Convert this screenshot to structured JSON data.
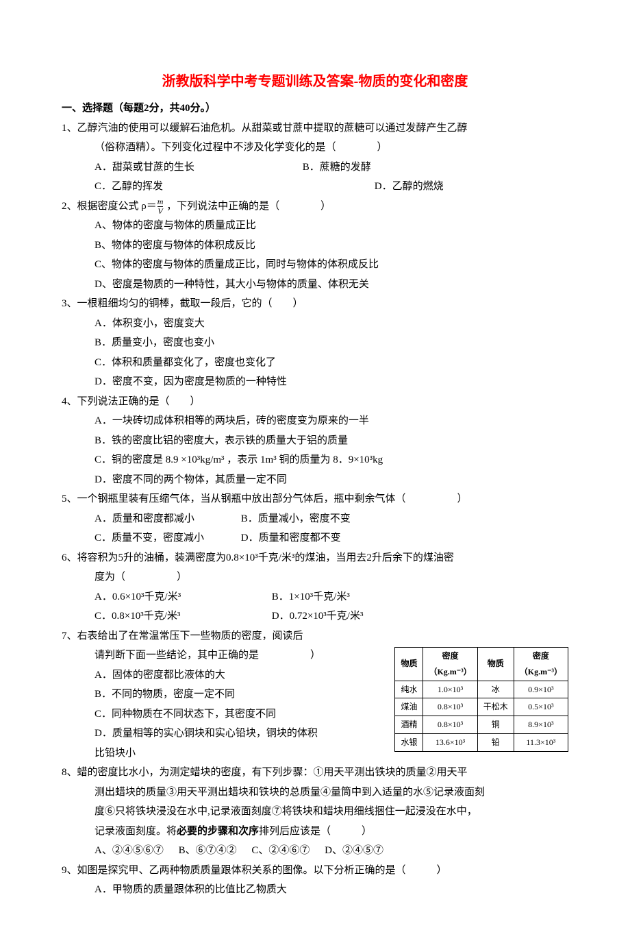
{
  "title": "浙教版科学中考专题训练及答案-物质的变化和密度",
  "section_header": "一、选择题（每题2分，共40分。）",
  "density_formula": {
    "num": "m",
    "den": "V"
  },
  "q1": {
    "stem1": "1、乙醇汽油的使用可以缓解石油危机。从甜菜或甘蔗中提取的蔗糖可以通过发酵产生乙醇",
    "stem2": "（俗称酒精）。下列变化过程中不涉及化学变化的是（　　　　）",
    "A": "A．甜菜或甘蔗的生长",
    "B": "B．蔗糖的发酵",
    "C": "C．乙醇的挥发",
    "D": "D．乙醇的燃烧"
  },
  "q2": {
    "stem_pre": "2、根据密度公式 ρ＝",
    "stem_post": " ，下列说法中正确的是（　　　　）",
    "A": "A、物体的密度与物体的质量成正比",
    "B": "B、物体的密度与物体的体积成反比",
    "C": "C、物体的密度与物体的质量成正比，同时与物体的体积成反比",
    "D": "D、密度是物质的一种特性，其大小与物体的质量、体积无关"
  },
  "q3": {
    "stem": "3、一根粗细均匀的铜棒，截取一段后，它的（　　）",
    "A": "A．体积变小，密度变大",
    "B": "B．质量变小，密度也变小",
    "C": "C．体积和质量都变化了，密度也变化了",
    "D": "D．密度不变，因为密度是物质的一种特性"
  },
  "q4": {
    "stem": "4、下列说法正确的是（　　）",
    "A": "A．一块砖切成体积相等的两块后，砖的密度变为原来的一半",
    "B": "B．铁的密度比铝的密度大，表示铁的质量大于铝的质量",
    "C": "C．铜的密度是 8.9 ×10³kg/m³ ，表示 1m³ 铜的质量为 8．9×10³kg",
    "D": "D．密度不同的两个物体，其质量一定不同"
  },
  "q5": {
    "stem": "5、一个钢瓶里装有压缩气体，当从钢瓶中放出部分气体后，瓶中剩余气体（　　　　　）",
    "A": "A．质量和密度都减小",
    "B": "B．质量减小，密度不变",
    "C": "C．质量不变，密度减小",
    "D": "D．质量和密度都不变"
  },
  "q6": {
    "stem1": "6、将容积为5升的油桶，装满密度为0.8×10³千克/米³的煤油，当用去2升后余下的煤油密",
    "stem2": "度为（　　　　　）",
    "A": "A．0.6×10³千克/米³",
    "B": "B．1×10³千克/米³",
    "C": "C．0.8×10³千克/米³",
    "D": "D．0.72×10³千克/米³"
  },
  "q7": {
    "stem1": "7、右表给出了在常温常压下一些物质的密度，阅读后",
    "stem2": "请判断下面一些结论，其中正确的是　　　　　）",
    "A": "A．固体的密度都比液体的大",
    "B": "B．不同的物质，密度一定不同",
    "C": "C．同种物质在不同状态下，其密度不同",
    "D1": "D．质量相等的实心铜块和实心铅块，铜块的体积",
    "D2": "比铅块小"
  },
  "q8": {
    "stem1": "8、蜡的密度比水小，为测定蜡块的密度，有下列步骤：①用天平测出铁块的质量②用天平",
    "stem2": "测出蜡块的质量③用天平测出蜡块和铁块的总质量④量筒中到入适量的水⑤记录液面刻",
    "stem3": "度⑥只将铁块浸没在水中,记录液面刻度⑦将铁块和蜡块用细线捆住一起浸没在水中，",
    "stem4_pre": "记录液面刻度。将",
    "stem4_bold": "必要的步骤和次序",
    "stem4_post": "排列后应该是（　　　）",
    "A": "A、②④⑤⑥⑦",
    "B": "B、⑥⑦④②",
    "C": "C、②④⑥⑦",
    "D": "D、②④⑤⑦"
  },
  "q9": {
    "stem": "9、如图是探究甲、乙两种物质质量跟体积关系的图像。以下分析正确的是（　　　）",
    "A": "A．甲物质的质量跟体积的比值比乙物质大"
  },
  "density_table": {
    "columns": [
      "物质",
      "密度",
      "物质",
      "密度"
    ],
    "unit": "（Kg.m⁻³）",
    "rows": [
      [
        "纯水",
        "1.0×10³",
        "冰",
        "0.9×10³"
      ],
      [
        "煤油",
        "0.8×10³",
        "干松木",
        "0.5×10³"
      ],
      [
        "酒精",
        "0.8×10³",
        "铜",
        "8.9×10³"
      ],
      [
        "水银",
        "13.6×10³",
        "铅",
        "11.3×10³"
      ]
    ],
    "header_fontsize": 12,
    "border_color": "#000000"
  },
  "colors": {
    "title": "#ff0000",
    "text": "#000000",
    "background": "#ffffff"
  }
}
